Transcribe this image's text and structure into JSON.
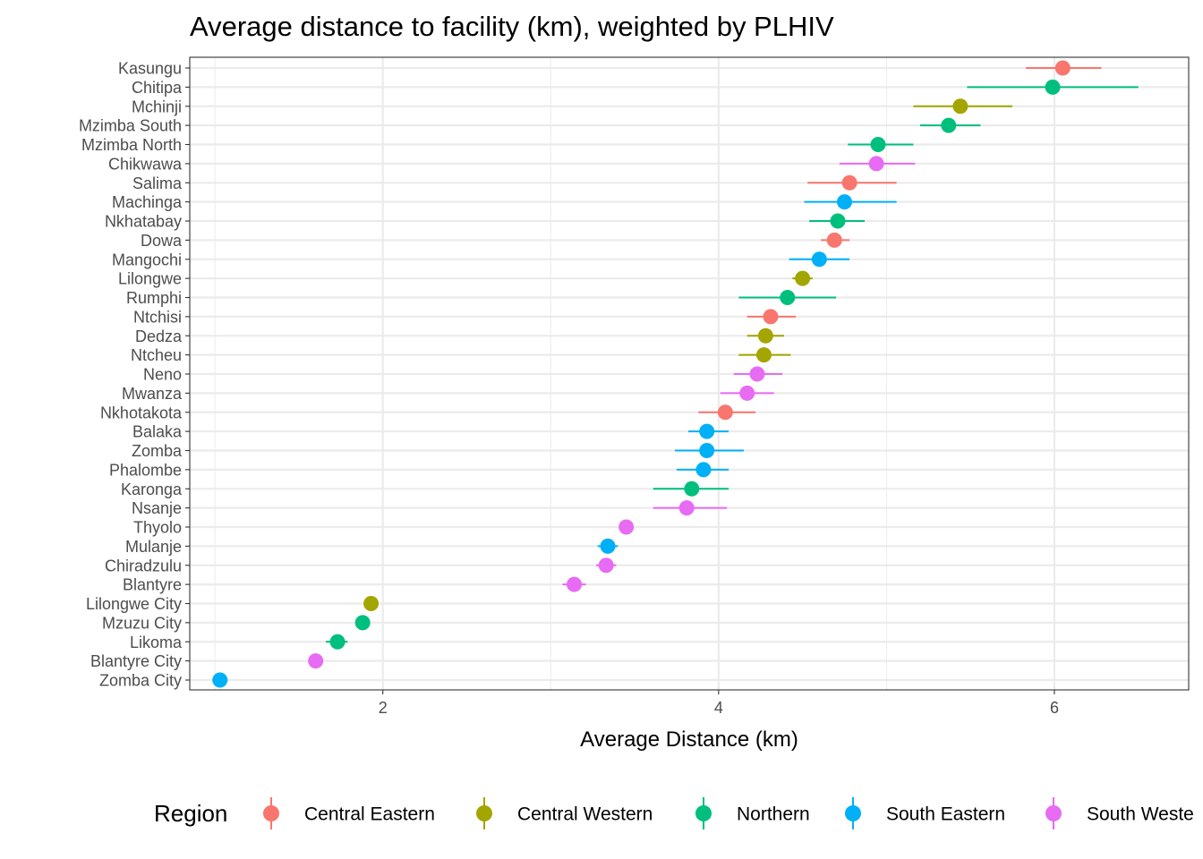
{
  "chart_data": {
    "type": "scatter",
    "title": "Average distance to facility (km), weighted by PLHIV",
    "xlabel": "Average Distance (km)",
    "ylabel": "",
    "xlim": [
      0.85,
      6.8
    ],
    "xticks": [
      2,
      4,
      6
    ],
    "xtick_labels": [
      "2",
      "4",
      "6"
    ],
    "grid": true,
    "legend": {
      "title": "Region",
      "position": "bottom",
      "entries": [
        {
          "name": "Central Eastern",
          "color": "#F8766D"
        },
        {
          "name": "Central Western",
          "color": "#A3A500"
        },
        {
          "name": "Northern",
          "color": "#00BF7D"
        },
        {
          "name": "South Eastern",
          "color": "#00B0F6"
        },
        {
          "name": "South Weste",
          "color": "#E76BF3"
        }
      ]
    },
    "points": [
      {
        "district": "Kasungu",
        "region": "Central Eastern",
        "x": 6.05,
        "lo": 5.83,
        "hi": 6.28
      },
      {
        "district": "Chitipa",
        "region": "Northern",
        "x": 5.99,
        "lo": 5.48,
        "hi": 6.5
      },
      {
        "district": "Mchinji",
        "region": "Central Western",
        "x": 5.44,
        "lo": 5.16,
        "hi": 5.75
      },
      {
        "district": "Mzimba South",
        "region": "Northern",
        "x": 5.37,
        "lo": 5.2,
        "hi": 5.56
      },
      {
        "district": "Mzimba North",
        "region": "Northern",
        "x": 4.95,
        "lo": 4.77,
        "hi": 5.16
      },
      {
        "district": "Chikwawa",
        "region": "South Western",
        "x": 4.94,
        "lo": 4.72,
        "hi": 5.17
      },
      {
        "district": "Salima",
        "region": "Central Eastern",
        "x": 4.78,
        "lo": 4.53,
        "hi": 5.06
      },
      {
        "district": "Machinga",
        "region": "South Eastern",
        "x": 4.75,
        "lo": 4.51,
        "hi": 5.06
      },
      {
        "district": "Nkhatabay",
        "region": "Northern",
        "x": 4.71,
        "lo": 4.54,
        "hi": 4.87
      },
      {
        "district": "Dowa",
        "region": "Central Eastern",
        "x": 4.69,
        "lo": 4.61,
        "hi": 4.78
      },
      {
        "district": "Mangochi",
        "region": "South Eastern",
        "x": 4.6,
        "lo": 4.42,
        "hi": 4.78
      },
      {
        "district": "Lilongwe",
        "region": "Central Western",
        "x": 4.5,
        "lo": 4.44,
        "hi": 4.56
      },
      {
        "district": "Rumphi",
        "region": "Northern",
        "x": 4.41,
        "lo": 4.12,
        "hi": 4.7
      },
      {
        "district": "Ntchisi",
        "region": "Central Eastern",
        "x": 4.31,
        "lo": 4.17,
        "hi": 4.46
      },
      {
        "district": "Dedza",
        "region": "Central Western",
        "x": 4.28,
        "lo": 4.17,
        "hi": 4.39
      },
      {
        "district": "Ntcheu",
        "region": "Central Western",
        "x": 4.27,
        "lo": 4.12,
        "hi": 4.43
      },
      {
        "district": "Neno",
        "region": "South Western",
        "x": 4.23,
        "lo": 4.09,
        "hi": 4.38
      },
      {
        "district": "Mwanza",
        "region": "South Western",
        "x": 4.17,
        "lo": 4.01,
        "hi": 4.33
      },
      {
        "district": "Nkhotakota",
        "region": "Central Eastern",
        "x": 4.04,
        "lo": 3.88,
        "hi": 4.22
      },
      {
        "district": "Balaka",
        "region": "South Eastern",
        "x": 3.93,
        "lo": 3.82,
        "hi": 4.06
      },
      {
        "district": "Zomba",
        "region": "South Eastern",
        "x": 3.93,
        "lo": 3.74,
        "hi": 4.15
      },
      {
        "district": "Phalombe",
        "region": "South Eastern",
        "x": 3.91,
        "lo": 3.75,
        "hi": 4.06
      },
      {
        "district": "Karonga",
        "region": "Northern",
        "x": 3.84,
        "lo": 3.61,
        "hi": 4.06
      },
      {
        "district": "Nsanje",
        "region": "South Western",
        "x": 3.81,
        "lo": 3.61,
        "hi": 4.05
      },
      {
        "district": "Thyolo",
        "region": "South Western",
        "x": 3.45,
        "lo": 3.42,
        "hi": 3.48
      },
      {
        "district": "Mulanje",
        "region": "South Eastern",
        "x": 3.34,
        "lo": 3.28,
        "hi": 3.4
      },
      {
        "district": "Chiradzulu",
        "region": "South Western",
        "x": 3.33,
        "lo": 3.27,
        "hi": 3.39
      },
      {
        "district": "Blantyre",
        "region": "South Western",
        "x": 3.14,
        "lo": 3.07,
        "hi": 3.21
      },
      {
        "district": "Lilongwe City",
        "region": "Central Western",
        "x": 1.93,
        "lo": 1.92,
        "hi": 1.94
      },
      {
        "district": "Mzuzu City",
        "region": "Northern",
        "x": 1.88,
        "lo": 1.87,
        "hi": 1.89
      },
      {
        "district": "Likoma",
        "region": "Northern",
        "x": 1.73,
        "lo": 1.66,
        "hi": 1.79
      },
      {
        "district": "Blantyre City",
        "region": "South Western",
        "x": 1.6,
        "lo": 1.59,
        "hi": 1.61
      },
      {
        "district": "Zomba City",
        "region": "South Eastern",
        "x": 1.03,
        "lo": 1.02,
        "hi": 1.04
      }
    ]
  }
}
